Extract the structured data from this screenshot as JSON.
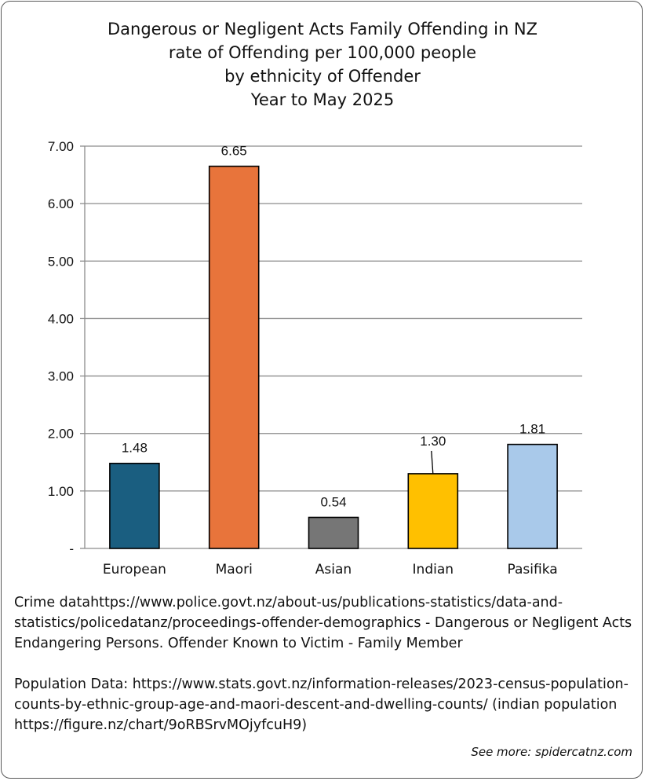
{
  "chart_data": {
    "type": "bar",
    "title": [
      "Dangerous or Negligent Acts Family Offending in NZ",
      "rate of Offending per 100,000 people",
      "by ethnicity of Offender",
      "Year to May 2025"
    ],
    "categories": [
      "European",
      "Maori",
      "Asian",
      "Indian",
      "Pasifika"
    ],
    "values": [
      1.48,
      6.65,
      0.54,
      1.3,
      1.81
    ],
    "data_labels": [
      "1.48",
      "6.65",
      "0.54",
      "1.30",
      "1.81"
    ],
    "colors": [
      "#1a5e80",
      "#e8743b",
      "#767676",
      "#ffc000",
      "#a9c9ea"
    ],
    "ylim": [
      0,
      7
    ],
    "yticks": [
      0,
      1,
      2,
      3,
      4,
      5,
      6,
      7
    ],
    "ytick_labels": [
      "-",
      "1.00",
      "2.00",
      "3.00",
      "4.00",
      "5.00",
      "6.00",
      "7.00"
    ],
    "grid": true,
    "legend": "none"
  },
  "notes": {
    "crime": "Crime datahttps://www.police.govt.nz/about-us/publications-statistics/data-and-statistics/policedatanz/proceedings-offender-demographics - Dangerous or Negligent Acts Endangering Persons. Offender Known to Victim - Family Member",
    "population": "Population Data: https://www.stats.govt.nz/information-releases/2023-census-population-counts-by-ethnic-group-age-and-maori-descent-and-dwelling-counts/ (indian population https://figure.nz/chart/9oRBSrvMOjyfcuH9)",
    "see_more": "See more: spidercatnz.com"
  }
}
